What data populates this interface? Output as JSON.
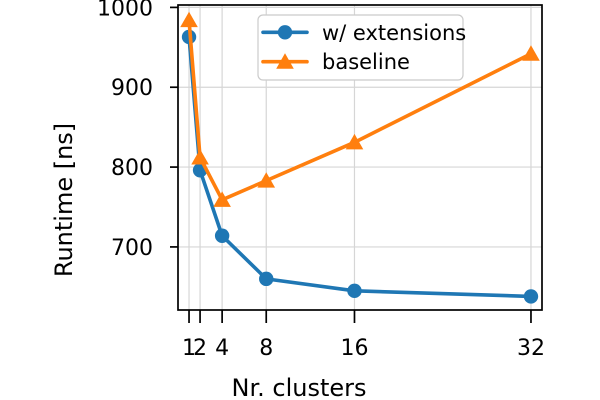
{
  "chart_data": {
    "type": "line",
    "title": "",
    "xlabel": "Nr. clusters",
    "ylabel": "Runtime [ns]",
    "x": [
      1,
      2,
      4,
      8,
      16,
      32
    ],
    "xticks": [
      1,
      2,
      4,
      8,
      16,
      32
    ],
    "xtick_labels": [
      "1",
      "2",
      "4",
      "8",
      "16",
      "32"
    ],
    "yticks": [
      700,
      800,
      900,
      1000
    ],
    "ytick_labels": [
      "700",
      "800",
      "900",
      "1000"
    ],
    "xlim": [
      0,
      33
    ],
    "ylim": [
      621,
      1003
    ],
    "grid": true,
    "x_scale": "linear",
    "series": [
      {
        "name": "w/ extensions",
        "color": "#1f77b4",
        "marker": "circle",
        "values": [
          963,
          796,
          714,
          660,
          645,
          638
        ]
      },
      {
        "name": "baseline",
        "color": "#ff7f0e",
        "marker": "triangle",
        "values": [
          984,
          812,
          759,
          783,
          831,
          942
        ]
      }
    ],
    "legend": {
      "position": "upper right",
      "entries": [
        "w/ extensions",
        "baseline"
      ]
    },
    "colors": {
      "background": "#ffffff",
      "axis": "#000000",
      "text": "#000000",
      "grid": "#d6d6d6",
      "legend_border": "#cbcbcb",
      "legend_fill": "#ffffff"
    }
  }
}
